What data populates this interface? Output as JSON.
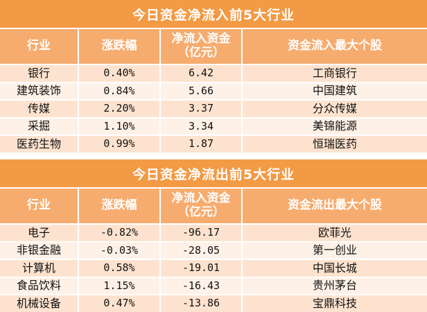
{
  "inflow": {
    "title": "今日资金净流入前5大行业",
    "headers": [
      "行业",
      "涨跌幅",
      "净流入资金\n（亿元）",
      "资金流入最大个股"
    ],
    "rows": [
      [
        "银行",
        "0.40%",
        "6.42",
        "工商银行"
      ],
      [
        "建筑装饰",
        "0.84%",
        "5.66",
        "中国建筑"
      ],
      [
        "传媒",
        "2.20%",
        "3.37",
        "分众传媒"
      ],
      [
        "采掘",
        "1.10%",
        "3.34",
        "美锦能源"
      ],
      [
        "医药生物",
        "0.99%",
        "1.87",
        "恒瑞医药"
      ]
    ]
  },
  "outflow": {
    "title": "今日资金净流出前5大行业",
    "headers": [
      "行业",
      "涨跌幅",
      "净流入资金\n（亿元）",
      "资金流出最大个股"
    ],
    "rows": [
      [
        "电子",
        "-0.82%",
        "-96.17",
        "欧菲光"
      ],
      [
        "非银金融",
        "-0.03%",
        "-28.05",
        "第一创业"
      ],
      [
        "计算机",
        "0.58%",
        "-19.01",
        "中国长城"
      ],
      [
        "食品饮料",
        "1.15%",
        "-16.43",
        "贵州茅台"
      ],
      [
        "机械设备",
        "0.47%",
        "-13.86",
        "宝鼎科技"
      ]
    ]
  },
  "colors": {
    "title_bg": "#f39a45",
    "header_bg": "#f6ac6e",
    "row_odd": "#fde3cf",
    "row_even": "#fef1e7"
  }
}
